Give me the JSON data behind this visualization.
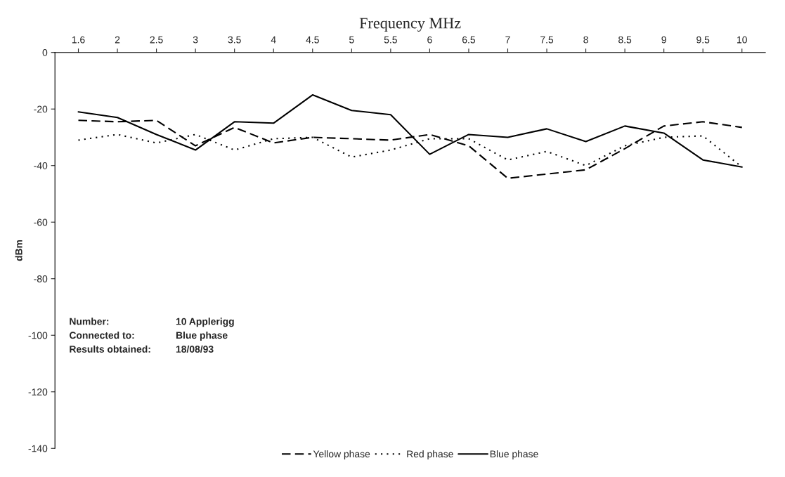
{
  "chart_data": {
    "type": "line",
    "xlabel": "Frequency MHz",
    "ylabel": "dBm",
    "categories": [
      "1.6",
      "2",
      "2.5",
      "3",
      "3.5",
      "4",
      "4.5",
      "5",
      "5.5",
      "6",
      "6.5",
      "7",
      "7.5",
      "8",
      "8.5",
      "9",
      "9.5",
      "10"
    ],
    "series": [
      {
        "name": "Yellow phase",
        "color": "#000000",
        "line_style": "dashed",
        "values": [
          -24,
          -24.5,
          -24,
          -33,
          -26.5,
          -32,
          -30,
          -30.5,
          -31,
          -29,
          -33,
          -44.5,
          -43,
          -41.5,
          -34,
          -26,
          -24.5,
          -26.5
        ]
      },
      {
        "name": "Red phase",
        "color": "#000000",
        "line_style": "dotted",
        "values": [
          -31,
          -29,
          -32,
          -29,
          -34.5,
          -30.5,
          -30,
          -37,
          -34.5,
          -30.5,
          -30.5,
          -38,
          -35,
          -40,
          -33,
          -30,
          -29.5,
          -40.5
        ]
      },
      {
        "name": "Blue phase",
        "color": "#000000",
        "line_style": "solid",
        "values": [
          -21,
          -23,
          -29,
          -34.5,
          -24.5,
          -25,
          -15,
          -20.5,
          -22,
          -36,
          -29,
          -30,
          -27,
          -31.5,
          -26,
          -28.5,
          -38,
          -40.5
        ]
      }
    ],
    "ylim": [
      -140,
      0
    ],
    "yticks": [
      0,
      -20,
      -40,
      -60,
      -80,
      -100,
      -120,
      -140
    ],
    "grid": false,
    "legend": "bottom",
    "marker": "none",
    "annotations": [
      "Number:",
      "10 Applerigg",
      "Connected to:",
      "Blue phase",
      "Results obtained:",
      "18/08/93"
    ]
  }
}
